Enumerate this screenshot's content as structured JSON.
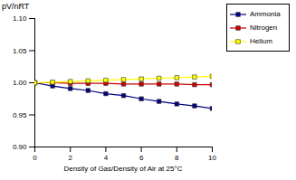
{
  "chart_data": {
    "type": "line",
    "x_label": "Density of Gas/Density of Air at 25°C",
    "y_label": "pV/nRT",
    "x": [
      0,
      1,
      2,
      3,
      4,
      5,
      6,
      7,
      8,
      9,
      10
    ],
    "series": [
      {
        "name": "Ammonia",
        "color": "#000080",
        "marker": "square",
        "values": [
          1.0,
          0.995,
          0.991,
          0.988,
          0.983,
          0.98,
          0.975,
          0.971,
          0.967,
          0.964,
          0.96
        ]
      },
      {
        "name": "Nitrogen",
        "color": "#cc0000",
        "marker": "square",
        "values": [
          1.0,
          1.0,
          0.999,
          0.999,
          0.999,
          0.998,
          0.998,
          0.998,
          0.998,
          0.997,
          0.997
        ]
      },
      {
        "name": "Helium",
        "color": "#ffff00",
        "marker": "square",
        "values": [
          1.0,
          1.001,
          1.002,
          1.003,
          1.004,
          1.005,
          1.006,
          1.007,
          1.008,
          1.009,
          1.01
        ]
      }
    ],
    "xlim": [
      0,
      10
    ],
    "xticks": [
      0,
      2,
      4,
      6,
      8,
      10
    ],
    "ylim": [
      0.9,
      1.1
    ],
    "yticks": [
      {
        "value": 0.9,
        "label": "0.90"
      },
      0.95,
      {
        "value": 1.0,
        "label": "1.00"
      },
      1.05,
      {
        "value": 1.1,
        "label": "1.10"
      }
    ],
    "grid": false,
    "legend": "top-right"
  }
}
